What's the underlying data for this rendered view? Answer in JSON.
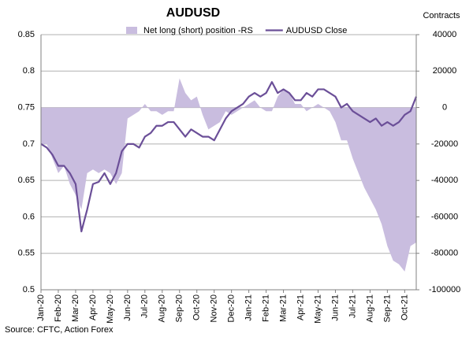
{
  "chart_data": {
    "type": "line-area-dual",
    "title": "AUDUSD",
    "y2_label": "Contracts",
    "source": "Source: CFTC, Action Forex",
    "legend": "top",
    "grid": true,
    "categories": [
      "Jan-20",
      null,
      null,
      "Feb-20",
      null,
      null,
      "Mar-20",
      null,
      null,
      "Apr-20",
      null,
      null,
      "May-20",
      null,
      null,
      "Jun-20",
      null,
      null,
      "Jul-20",
      null,
      null,
      "Aug-20",
      null,
      null,
      "Sep-20",
      null,
      null,
      "Oct-20",
      null,
      null,
      "Nov-20",
      null,
      null,
      "Dec-20",
      null,
      null,
      "Jan-21",
      null,
      null,
      "Feb-21",
      null,
      null,
      "Mar-21",
      null,
      null,
      "Apr-21",
      null,
      null,
      "May-21",
      null,
      null,
      "Jun-21",
      null,
      null,
      "Jul-21",
      null,
      null,
      "Aug-21",
      null,
      null,
      "Sep-21",
      null,
      null,
      "Oct-21",
      null,
      null
    ],
    "series": [
      {
        "name": "Net long (short) position -RS",
        "type": "area",
        "axis": "y2",
        "color": "#c9bddf",
        "values": [
          -20000,
          -20000,
          -28000,
          -36000,
          -32000,
          -42000,
          -48000,
          -56000,
          -36000,
          -34000,
          -36000,
          -34000,
          -36000,
          -42000,
          -36000,
          -6000,
          -4000,
          -2000,
          2000,
          -2000,
          -2000,
          -4000,
          -2000,
          -2000,
          16000,
          8000,
          4000,
          6000,
          -4000,
          -12000,
          -10000,
          -8000,
          -2000,
          -4000,
          -2000,
          0,
          2000,
          4000,
          0,
          -2000,
          -2000,
          6000,
          10000,
          8000,
          2000,
          2000,
          -2000,
          0,
          2000,
          0,
          -2000,
          -8000,
          -18000,
          -18000,
          -28000,
          -36000,
          -44000,
          -50000,
          -56000,
          -64000,
          -76000,
          -84000,
          -86000,
          -90000,
          -76000,
          -74000
        ]
      },
      {
        "name": "AUDUSD Close",
        "type": "line",
        "axis": "y",
        "color": "#6b4f98",
        "values": [
          0.7,
          0.695,
          0.685,
          0.67,
          0.67,
          0.66,
          0.645,
          0.58,
          0.61,
          0.645,
          0.648,
          0.66,
          0.645,
          0.66,
          0.69,
          0.7,
          0.7,
          0.695,
          0.71,
          0.715,
          0.725,
          0.725,
          0.73,
          0.73,
          0.72,
          0.71,
          0.72,
          0.715,
          0.71,
          0.71,
          0.705,
          0.72,
          0.735,
          0.745,
          0.75,
          0.755,
          0.765,
          0.77,
          0.765,
          0.77,
          0.785,
          0.77,
          0.775,
          0.77,
          0.76,
          0.76,
          0.77,
          0.765,
          0.775,
          0.775,
          0.77,
          0.765,
          0.75,
          0.755,
          0.745,
          0.74,
          0.735,
          0.73,
          0.735,
          0.725,
          0.73,
          0.725,
          0.73,
          0.74,
          0.745,
          0.765
        ]
      }
    ],
    "ylim": [
      0.5,
      0.85
    ],
    "yticks": [
      0.5,
      0.55,
      0.6,
      0.65,
      0.7,
      0.75,
      0.8,
      0.85
    ],
    "y2lim": [
      -100000,
      40000
    ],
    "y2ticks": [
      -100000,
      -80000,
      -60000,
      -40000,
      -20000,
      0,
      20000,
      40000
    ]
  }
}
